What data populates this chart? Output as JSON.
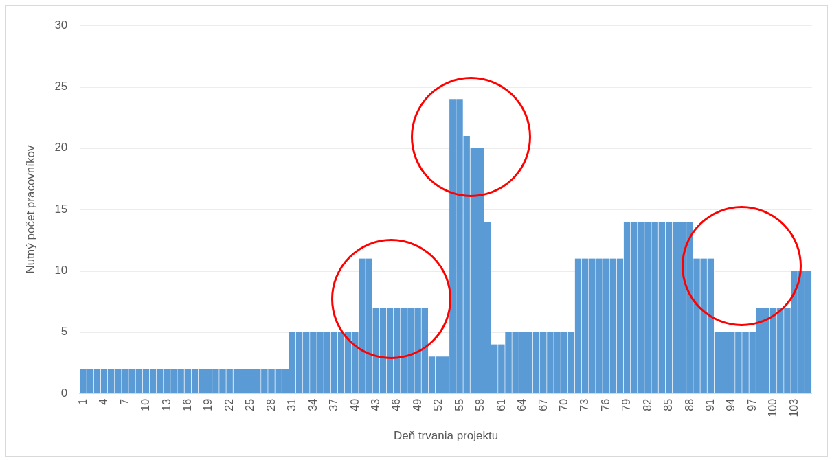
{
  "chart_data": {
    "type": "bar",
    "xlabel": "Deň trvania projektu",
    "ylabel": "Nutný počet pracovníkov",
    "categories": [
      "1",
      null,
      null,
      "4",
      null,
      null,
      "7",
      null,
      null,
      "10",
      null,
      null,
      "13",
      null,
      null,
      "16",
      null,
      null,
      "19",
      null,
      null,
      "22",
      null,
      null,
      "25",
      null,
      null,
      "28",
      null,
      null,
      "31",
      null,
      null,
      "34",
      null,
      null,
      "37",
      null,
      null,
      "40",
      null,
      null,
      "43",
      null,
      null,
      "46",
      null,
      null,
      "49",
      null,
      null,
      "52",
      null,
      null,
      "55",
      null,
      null,
      "58",
      null,
      null,
      "61",
      null,
      null,
      "64",
      null,
      null,
      "67",
      null,
      null,
      "70",
      null,
      null,
      "73",
      null,
      null,
      "76",
      null,
      null,
      "79",
      null,
      null,
      "82",
      null,
      null,
      "85",
      null,
      null,
      "88",
      null,
      null,
      "91",
      null,
      null,
      "94",
      null,
      null,
      "97",
      null,
      null,
      "100",
      null,
      null,
      "103",
      null,
      null
    ],
    "values": [
      2,
      2,
      2,
      2,
      2,
      2,
      2,
      2,
      2,
      2,
      2,
      2,
      2,
      2,
      2,
      2,
      2,
      2,
      2,
      2,
      2,
      2,
      2,
      2,
      2,
      2,
      2,
      2,
      2,
      2,
      5,
      5,
      5,
      5,
      5,
      5,
      5,
      5,
      5,
      5,
      11,
      11,
      7,
      7,
      7,
      7,
      7,
      7,
      7,
      7,
      3,
      3,
      3,
      24,
      24,
      21,
      20,
      20,
      14,
      4,
      4,
      5,
      5,
      5,
      5,
      5,
      5,
      5,
      5,
      5,
      5,
      11,
      11,
      11,
      11,
      11,
      11,
      11,
      14,
      14,
      14,
      14,
      14,
      14,
      14,
      14,
      14,
      14,
      11,
      11,
      11,
      5,
      5,
      5,
      5,
      5,
      5,
      7,
      7,
      7,
      7,
      7,
      10,
      10,
      10
    ],
    "color": "#5b9bd5",
    "ylim": [
      0,
      30
    ],
    "yticks": [
      0,
      5,
      10,
      15,
      20,
      25,
      30
    ],
    "grid": "y"
  }
}
